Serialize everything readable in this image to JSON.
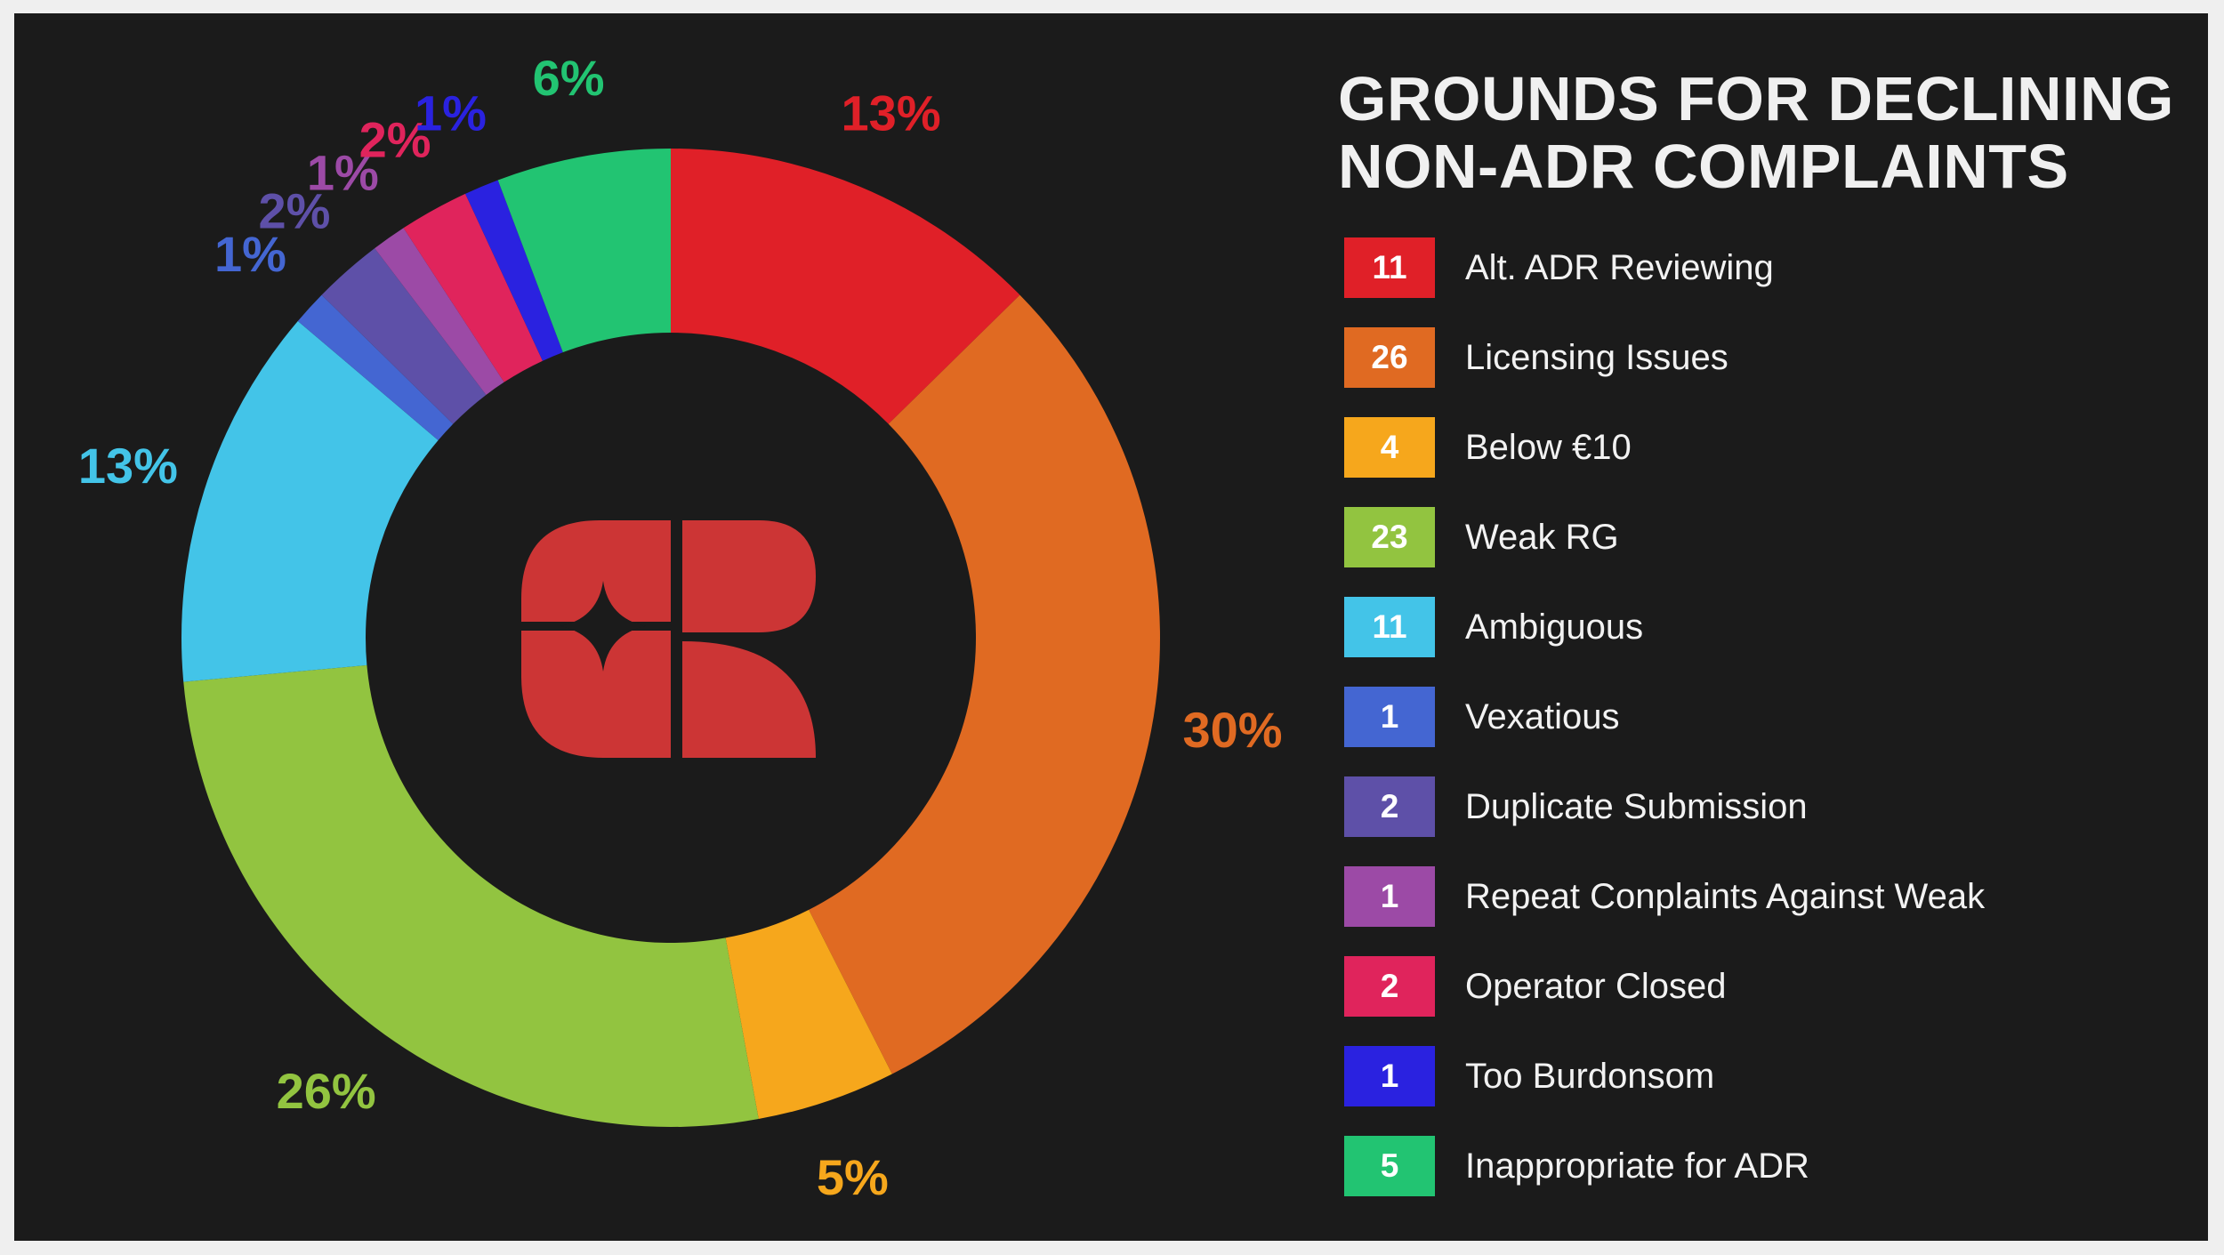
{
  "chart_data": {
    "type": "pie",
    "title_lines": [
      "GROUNDS FOR DECLINING",
      "NON-ADR COMPLAINTS"
    ],
    "donut": true,
    "legend_position": "right",
    "categories": [
      "Alt. ADR Reviewing",
      "Licensing Issues",
      "Below €10",
      "Weak RG",
      "Ambiguous",
      "Vexatious",
      "Duplicate Submission",
      "Repeat Conplaints Against Weak",
      "Operator Closed",
      "Too Burdonsom",
      "Inappropriate for ADR"
    ],
    "values": [
      11,
      26,
      4,
      23,
      11,
      1,
      2,
      1,
      2,
      1,
      5
    ],
    "percent_labels": [
      "13%",
      "30%",
      "5%",
      "26%",
      "13%",
      "1%",
      "2%",
      "1%",
      "2%",
      "1%",
      "6%"
    ],
    "colors": [
      "#e02028",
      "#e06a22",
      "#f6a71c",
      "#92c440",
      "#43c4e8",
      "#4466d2",
      "#5e50a8",
      "#9c4aa6",
      "#e0245c",
      "#2a22e0",
      "#22c472"
    ]
  },
  "logo": {
    "name": "brand-logo-icon",
    "color": "#cc3535"
  }
}
